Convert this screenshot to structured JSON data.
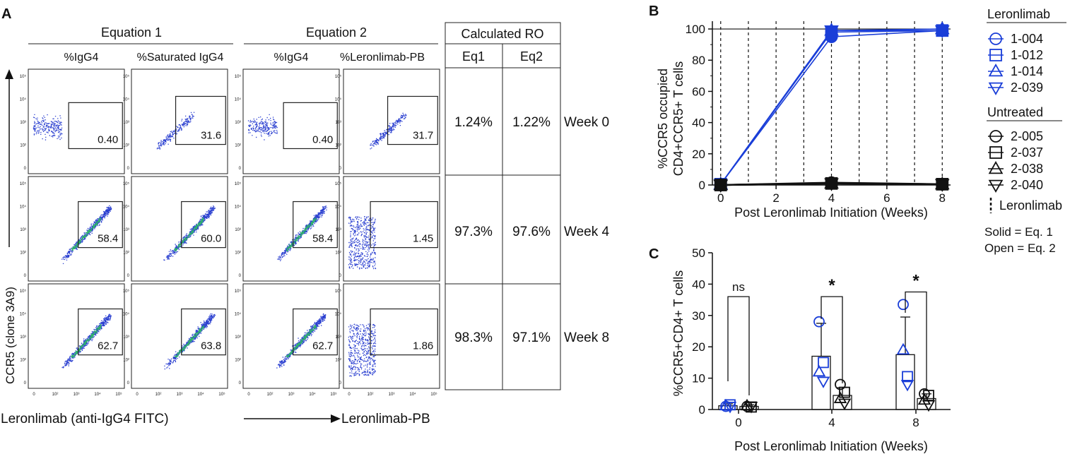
{
  "panel_a": {
    "letter": "A",
    "eq1_header": "Equation 1",
    "eq2_header": "Equation 2",
    "ro_header": "Calculated RO",
    "col_labels": [
      "%IgG4",
      "%Saturated IgG4",
      "%IgG4",
      "%Leronlimab-PB"
    ],
    "ro_cols": [
      "Eq1",
      "Eq2"
    ],
    "y_axis_label": "CCR5 (clone 3A9)",
    "x_axis_label_left": "Leronlimab (anti-IgG4 FITC)",
    "x_axis_label_right": "Leronlimab-PB",
    "rows": [
      {
        "week": "Week 0",
        "gates": [
          "0.40",
          "31.6",
          "0.40",
          "31.7"
        ],
        "ro": [
          "1.24%",
          "1.22%"
        ]
      },
      {
        "week": "Week 4",
        "gates": [
          "58.4",
          "60.0",
          "58.4",
          "1.45"
        ],
        "ro": [
          "97.3%",
          "97.6%"
        ]
      },
      {
        "week": "Week 8",
        "gates": [
          "62.7",
          "63.8",
          "62.7",
          "1.86"
        ],
        "ro": [
          "98.3%",
          "97.1%"
        ]
      }
    ],
    "y_ticks": [
      "10⁵",
      "10⁴",
      "10³",
      "10²",
      "0"
    ],
    "x_ticks": [
      "0",
      "10²",
      "10³",
      "10⁴",
      "10⁵"
    ]
  },
  "legend": {
    "treated_title": "Leronlimab",
    "treated": [
      {
        "id": "1-004",
        "marker": "circle"
      },
      {
        "id": "1-012",
        "marker": "square"
      },
      {
        "id": "1-014",
        "marker": "triangle-up"
      },
      {
        "id": "2-039",
        "marker": "triangle-down"
      }
    ],
    "untreated_title": "Untreated",
    "untreated": [
      {
        "id": "2-005",
        "marker": "circle"
      },
      {
        "id": "2-037",
        "marker": "square"
      },
      {
        "id": "2-038",
        "marker": "triangle-up"
      },
      {
        "id": "2-040",
        "marker": "triangle-down"
      }
    ],
    "dashed_label": "Leronlimab",
    "solid_note": "Solid = Eq. 1",
    "open_note": "Open = Eq. 2"
  },
  "colors": {
    "treated": "#1a3ed8",
    "untreated": "#111111",
    "scatter": "#2a3fd0",
    "scatter_dense": "#2fb36b"
  },
  "chart_data": [
    {
      "panel": "B",
      "type": "line",
      "title": "",
      "xlabel": "Post Leronlimab Initiation (Weeks)",
      "ylabel_lines": [
        "%CCR5 occupied",
        "CD4+CCR5+ T cells"
      ],
      "xlim": [
        -0.3,
        8.3
      ],
      "ylim": [
        0,
        105
      ],
      "x_ticks": [
        0,
        2,
        4,
        6,
        8
      ],
      "y_ticks": [
        0,
        20,
        40,
        60,
        80,
        100
      ],
      "reference_line_y": 100,
      "dashed_verticals": [
        0,
        1,
        2,
        3,
        4,
        5,
        6,
        7,
        8
      ],
      "series": [
        {
          "name": "1-004",
          "group": "treated",
          "x": [
            0,
            4,
            8
          ],
          "values": [
            0.5,
            95,
            99
          ]
        },
        {
          "name": "1-012",
          "group": "treated",
          "x": [
            0,
            4,
            8
          ],
          "values": [
            0.5,
            98,
            99
          ]
        },
        {
          "name": "1-014",
          "group": "treated",
          "x": [
            0,
            4,
            8
          ],
          "values": [
            0.5,
            99,
            100
          ]
        },
        {
          "name": "2-039",
          "group": "treated",
          "x": [
            0,
            4,
            8
          ],
          "values": [
            0.5,
            99,
            99
          ]
        },
        {
          "name": "2-005",
          "group": "untreated",
          "x": [
            0,
            4,
            8
          ],
          "values": [
            0,
            1.5,
            0.5
          ]
        },
        {
          "name": "2-037",
          "group": "untreated",
          "x": [
            0,
            4,
            8
          ],
          "values": [
            0,
            1,
            0.5
          ]
        },
        {
          "name": "2-038",
          "group": "untreated",
          "x": [
            0,
            4,
            8
          ],
          "values": [
            0,
            1,
            0.5
          ]
        },
        {
          "name": "2-040",
          "group": "untreated",
          "x": [
            0,
            4,
            8
          ],
          "values": [
            0,
            1,
            0.5
          ]
        }
      ]
    },
    {
      "panel": "C",
      "type": "bar",
      "xlabel": "Post Leronlimab Initiation (Weeks)",
      "ylabel": "%CCR5+CD4+ T cells",
      "categories": [
        "0",
        "4",
        "8"
      ],
      "ylim": [
        0,
        50
      ],
      "y_ticks": [
        0,
        10,
        20,
        30,
        40,
        50
      ],
      "series": [
        {
          "name": "Leronlimab",
          "group": "treated",
          "values": [
            1.2,
            17,
            17.5
          ],
          "error": [
            0.6,
            10.5,
            12
          ],
          "points": [
            [
              1,
              1.5,
              1.2,
              1.0
            ],
            [
              28,
              15,
              12,
              9
            ],
            [
              33.5,
              10.5,
              19,
              8
            ]
          ]
        },
        {
          "name": "Untreated",
          "group": "untreated",
          "values": [
            1.0,
            4.5,
            3.5
          ],
          "error": [
            0.5,
            2.5,
            1.5
          ],
          "points": [
            [
              1.0,
              0.8,
              1.2,
              1.0
            ],
            [
              8,
              5.5,
              3.5,
              2
            ],
            [
              5,
              4.5,
              3,
              1.5
            ]
          ]
        }
      ],
      "significance": [
        {
          "category": "0",
          "label": "ns",
          "y": 36
        },
        {
          "category": "4",
          "label": "*",
          "y": 36
        },
        {
          "category": "8",
          "label": "*",
          "y": 37.5
        }
      ]
    }
  ]
}
